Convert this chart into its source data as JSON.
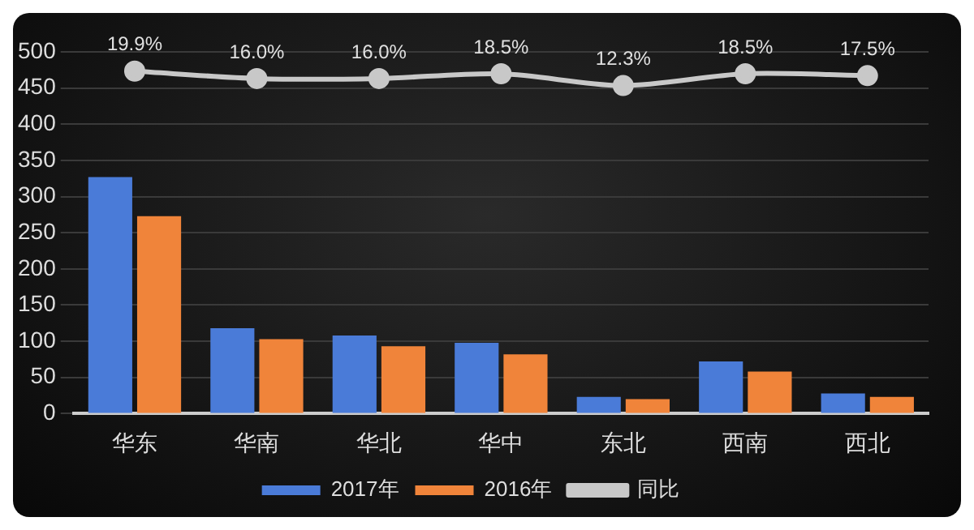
{
  "chart_data": {
    "type": "bar",
    "categories": [
      "华东",
      "华南",
      "华北",
      "华中",
      "东北",
      "西南",
      "西北"
    ],
    "series": [
      {
        "name": "2017年",
        "color": "#4a7bd8",
        "values": [
          327,
          118,
          108,
          98,
          23,
          72,
          28
        ]
      },
      {
        "name": "2016年",
        "color": "#f0843a",
        "values": [
          273,
          103,
          93,
          82,
          20,
          58,
          23
        ]
      },
      {
        "name": "同比",
        "type": "line",
        "axis": "y2",
        "color": "#c8c8c8",
        "values": [
          19.9,
          16.0,
          16.0,
          18.5,
          12.3,
          18.5,
          17.5
        ],
        "value_labels": [
          "19.9%",
          "16.0%",
          "16.0%",
          "18.5%",
          "12.3%",
          "18.5%",
          "17.5%"
        ]
      }
    ],
    "ylim": [
      0,
      500
    ],
    "yticks": [
      0,
      50,
      100,
      150,
      200,
      250,
      300,
      350,
      400,
      450,
      500
    ],
    "y2lim": [
      -160,
      30
    ],
    "grid": "y",
    "legend": "bottom",
    "marker": "circle"
  }
}
